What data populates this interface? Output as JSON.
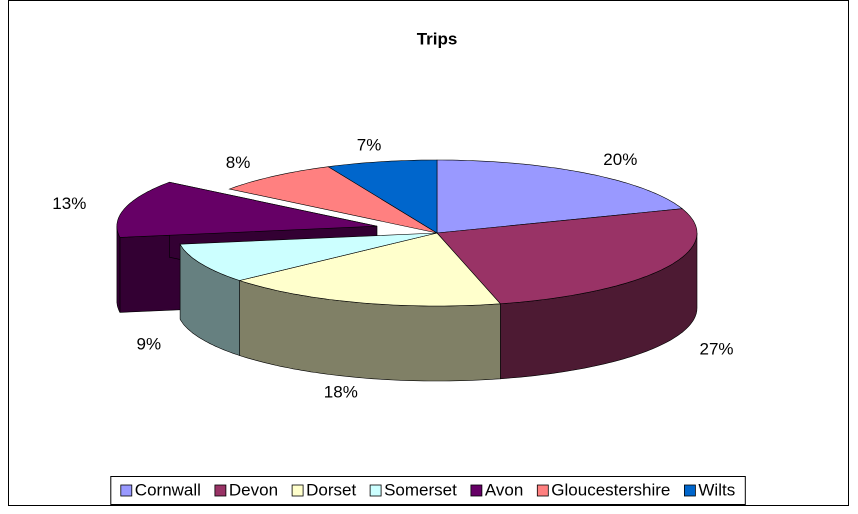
{
  "chart_data": {
    "type": "pie3d",
    "title": "Trips",
    "categories": [
      "Cornwall",
      "Devon",
      "Dorset",
      "Somerset",
      "Avon",
      "Gloucestershire",
      "Wilts"
    ],
    "values": [
      20,
      27,
      18,
      9,
      13,
      8,
      7
    ],
    "value_labels": [
      "20%",
      "27%",
      "18%",
      "9%",
      "13%",
      "8%",
      "7%"
    ],
    "colors": [
      "#9999ff",
      "#993366",
      "#ffffcc",
      "#ccffff",
      "#660066",
      "#ff8080",
      "#0066cc"
    ],
    "exploded": [
      false,
      false,
      false,
      false,
      true,
      false,
      false
    ],
    "legend": "bottom"
  }
}
